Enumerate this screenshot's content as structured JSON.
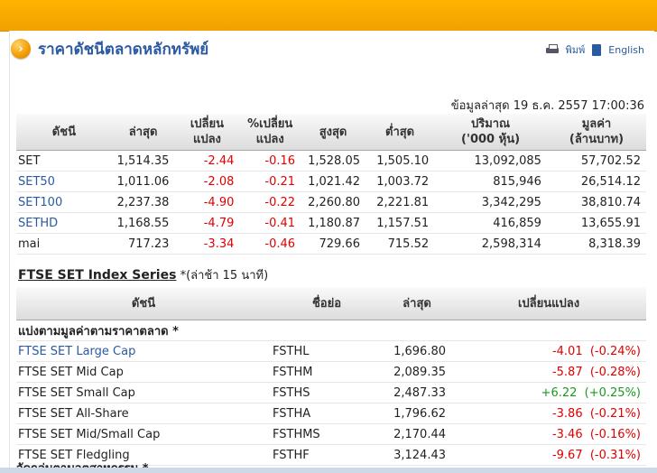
{
  "header": {
    "title": "ราคาดัชนีตลาดหลักทรัพย์",
    "print_label": "พิมพ์",
    "english_label": "English",
    "updated": "ข้อมูลล่าสุด 19 ธ.ค. 2557 17:00:36"
  },
  "main_table": {
    "columns": [
      {
        "line1": "ดัชนี",
        "line2": ""
      },
      {
        "line1": "ล่าสุด",
        "line2": ""
      },
      {
        "line1": "เปลี่ยน",
        "line2": "แปลง"
      },
      {
        "line1": "%เปลี่ยน",
        "line2": "แปลง"
      },
      {
        "line1": "สูงสุด",
        "line2": ""
      },
      {
        "line1": "ต่ำสุด",
        "line2": ""
      },
      {
        "line1": "ปริมาณ",
        "line2": "('000 หุ้น)"
      },
      {
        "line1": "มูลค่า",
        "line2": "(ล้านบาท)"
      }
    ],
    "rows": [
      {
        "name": "SET",
        "last": "1,514.35",
        "chg": "-2.44",
        "pct": "-0.16",
        "high": "1,528.05",
        "low": "1,505.10",
        "vol": "13,092,085",
        "val": "57,702.52"
      },
      {
        "name": "SET50",
        "last": "1,011.06",
        "chg": "-2.08",
        "pct": "-0.21",
        "high": "1,021.42",
        "low": "1,003.72",
        "vol": "815,946",
        "val": "26,514.12"
      },
      {
        "name": "SET100",
        "last": "2,237.38",
        "chg": "-4.90",
        "pct": "-0.22",
        "high": "2,260.80",
        "low": "2,221.81",
        "vol": "3,342,295",
        "val": "38,810.74"
      },
      {
        "name": "SETHD",
        "last": "1,168.55",
        "chg": "-4.79",
        "pct": "-0.41",
        "high": "1,180.87",
        "low": "1,157.51",
        "vol": "416,859",
        "val": "13,655.91"
      },
      {
        "name": "mai",
        "last": "717.23",
        "chg": "-3.34",
        "pct": "-0.46",
        "high": "729.66",
        "low": "715.52",
        "vol": "2,598,314",
        "val": "8,318.39"
      }
    ]
  },
  "ftse": {
    "heading": "FTSE SET Index Series",
    "note": "*(ล่าช้า 15 นาที)",
    "columns": [
      "ดัชนี",
      "ชื่อย่อ",
      "ล่าสุด",
      "เปลี่ยนแปลง"
    ],
    "group_label": "แบ่งตามมูลค่าตามราคาตลาด *",
    "rows": [
      {
        "name": "FTSE SET Large Cap",
        "sym": "FSTHL",
        "last": "1,696.80",
        "chg": "-4.01",
        "pct": "(-0.24%)"
      },
      {
        "name": "FTSE SET Mid Cap",
        "sym": "FSTHM",
        "last": "2,089.35",
        "chg": "-5.87",
        "pct": "(-0.28%)"
      },
      {
        "name": "FTSE SET Small Cap",
        "sym": "FSTHS",
        "last": "2,487.33",
        "chg": "+6.22",
        "pct": "(+0.25%)"
      },
      {
        "name": "FTSE SET All-Share",
        "sym": "FSTHA",
        "last": "1,796.62",
        "chg": "-3.86",
        "pct": "(-0.21%)"
      },
      {
        "name": "FTSE SET Mid/Small Cap",
        "sym": "FSTHMS",
        "last": "2,170.44",
        "chg": "-3.46",
        "pct": "(-0.16%)"
      },
      {
        "name": "FTSE SET Fledgling",
        "sym": "FSTHF",
        "last": "3,124.43",
        "chg": "-9.67",
        "pct": "(-0.31%)"
      }
    ],
    "next_group_label": "จัดกลุ่มตามอุตสาหกรรม *"
  }
}
